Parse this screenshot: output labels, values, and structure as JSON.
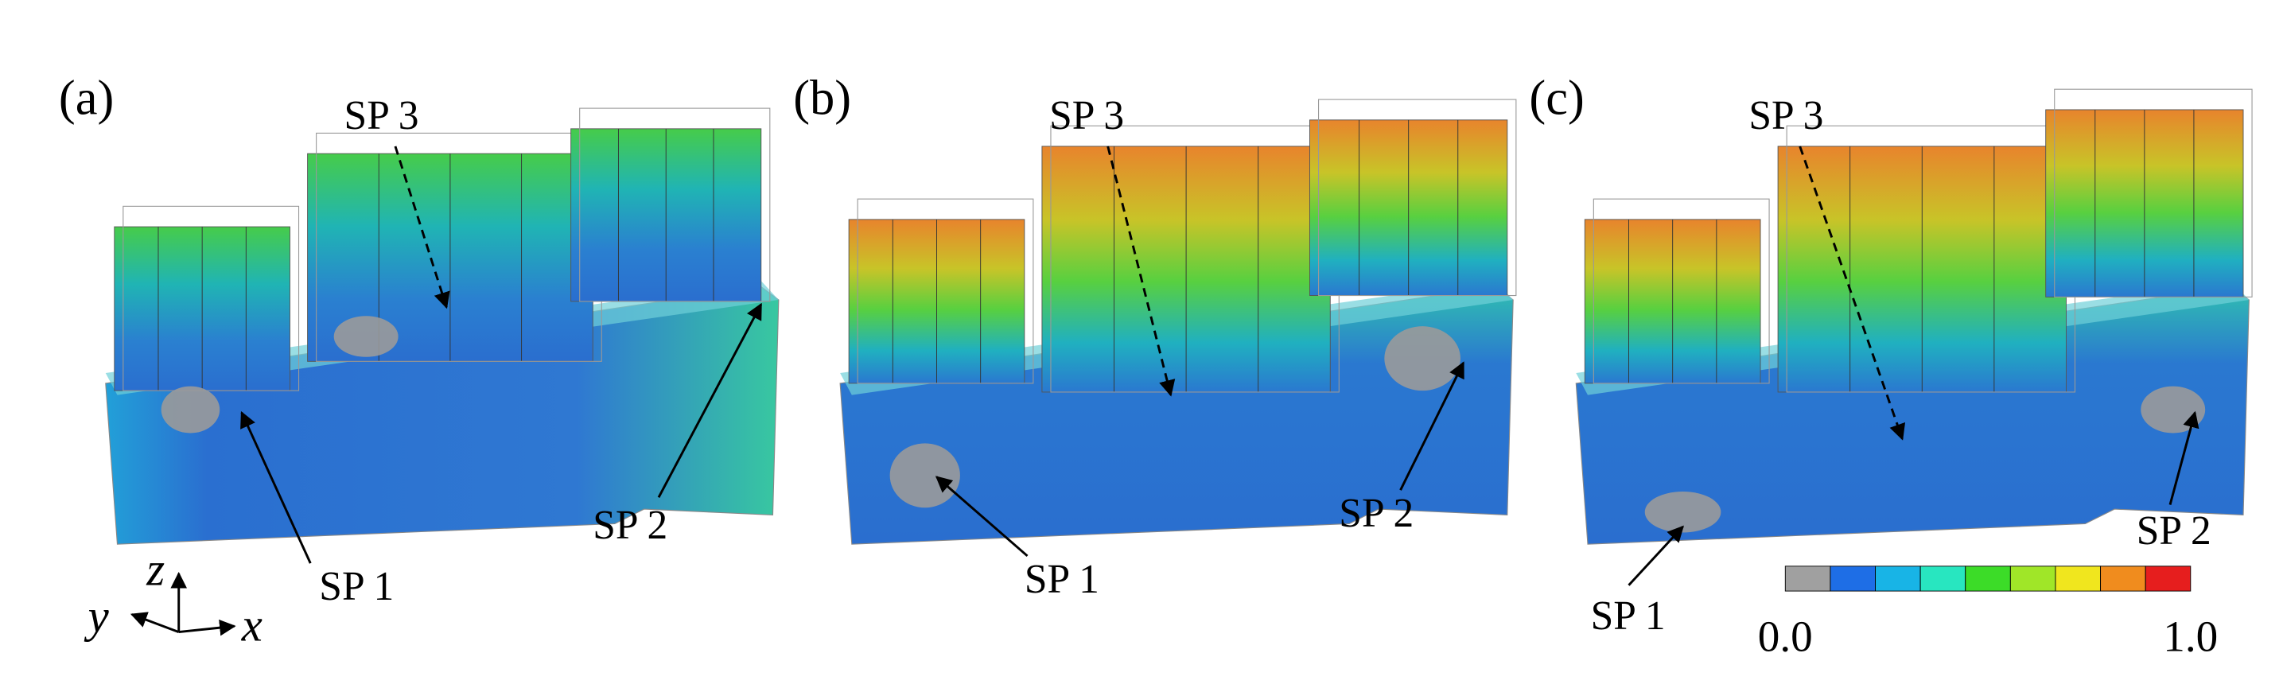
{
  "panels": [
    {
      "label": "(a)",
      "annotations": [
        "SP 3",
        "SP 1",
        "SP 2"
      ]
    },
    {
      "label": "(b)",
      "annotations": [
        "SP 3",
        "SP 1",
        "SP 2"
      ]
    },
    {
      "label": "(c)",
      "annotations": [
        "SP 3",
        "SP 1",
        "SP 2"
      ]
    }
  ],
  "axes": {
    "z": "z",
    "y": "y",
    "x": "x"
  },
  "colorbar": {
    "colors": [
      "#a0a0a0",
      "#1e6ee6",
      "#18b4e6",
      "#28e6c0",
      "#3cdc28",
      "#a0e628",
      "#f0e61e",
      "#f08c1e",
      "#e61e1e"
    ],
    "min_label": "0.0",
    "max_label": "1.0"
  }
}
